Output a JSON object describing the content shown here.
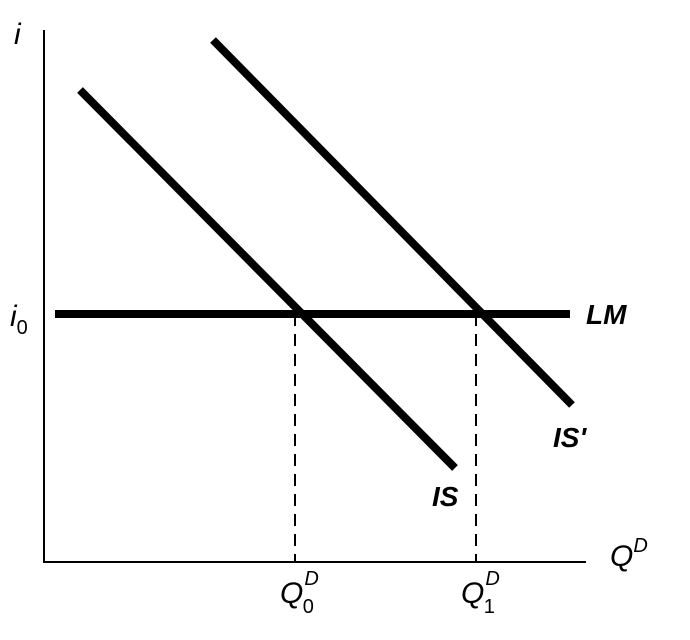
{
  "axes": {
    "y_label": "i",
    "x_label": {
      "base": "Q",
      "sup": "D"
    }
  },
  "levels": {
    "i0": {
      "base": "i",
      "sub": "0"
    }
  },
  "curves": [
    {
      "label": "LM"
    },
    {
      "label": "IS"
    },
    {
      "label": "IS'"
    }
  ],
  "quantities": [
    {
      "base": "Q",
      "sup": "D",
      "sub": "0"
    },
    {
      "base": "Q",
      "sup": "D",
      "sub": "1"
    }
  ]
}
